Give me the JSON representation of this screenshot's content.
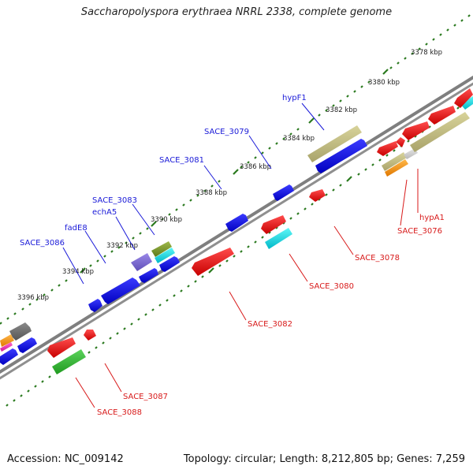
{
  "title": "Saccharopolyspora erythraea NRRL 2338, complete genome",
  "footer": {
    "accession": "Accession: NC_009142",
    "summary": "Topology: circular; Length: 8,212,805 bp; Genes: 7,259"
  },
  "colors": {
    "backbone": "#7f7f7f",
    "tick": "#2b7a1f",
    "label_forward": "#1a1ad8",
    "label_reverse": "#d81a1a"
  },
  "scale_labels": [
    "3378 kbp",
    "3380 kbp",
    "3382 kbp",
    "3384 kbp",
    "3386 kbp",
    "3388 kbp",
    "3390 kbp",
    "3392 kbp",
    "3394 kbp",
    "3396 kbp"
  ],
  "forward_gene_labels": [
    "hypF1",
    "SACE_3079",
    "SACE_3081",
    "SACE_3083",
    "echA5",
    "fadE8",
    "SACE_3086"
  ],
  "reverse_gene_labels": [
    "hypA1",
    "SACE_3076",
    "SACE_3078",
    "SACE_3080",
    "SACE_3082",
    "SACE_3087",
    "SACE_3088"
  ]
}
